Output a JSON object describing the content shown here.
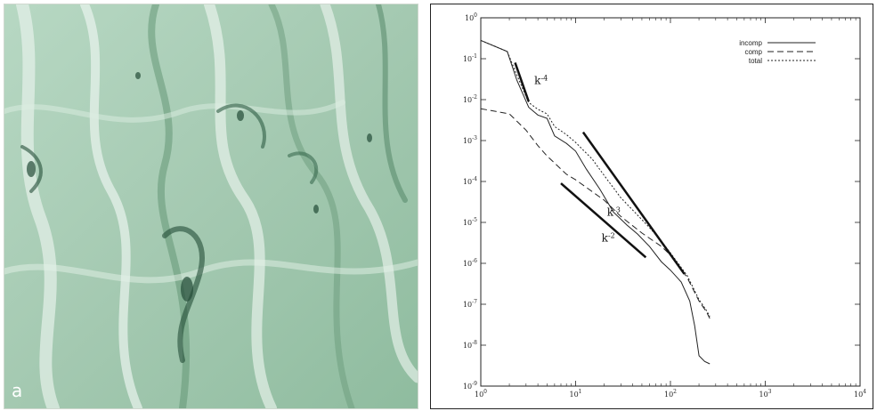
{
  "panel_a": {
    "label": "a",
    "description_colors": [
      "#a9cdb6",
      "#e6f1ea",
      "#5e9170",
      "#234c37"
    ]
  },
  "chart_data": {
    "type": "line",
    "xscale": "log",
    "yscale": "log",
    "xlim": [
      1,
      10000
    ],
    "ylim": [
      1e-09,
      1
    ],
    "xticks": [
      {
        "value": 1,
        "base": "10",
        "exp": "0"
      },
      {
        "value": 10,
        "base": "10",
        "exp": "1"
      },
      {
        "value": 100,
        "base": "10",
        "exp": "2"
      },
      {
        "value": 1000,
        "base": "10",
        "exp": "3"
      },
      {
        "value": 10000,
        "base": "10",
        "exp": "4"
      }
    ],
    "yticks": [
      {
        "value": 1,
        "base": "10",
        "exp": "0"
      },
      {
        "value": 0.1,
        "base": "10",
        "exp": "-1"
      },
      {
        "value": 0.01,
        "base": "10",
        "exp": "-2"
      },
      {
        "value": 0.001,
        "base": "10",
        "exp": "-3"
      },
      {
        "value": 0.0001,
        "base": "10",
        "exp": "-4"
      },
      {
        "value": 1e-05,
        "base": "10",
        "exp": "-5"
      },
      {
        "value": 1e-06,
        "base": "10",
        "exp": "-6"
      },
      {
        "value": 1e-07,
        "base": "10",
        "exp": "-7"
      },
      {
        "value": 1e-08,
        "base": "10",
        "exp": "-8"
      },
      {
        "value": 1e-09,
        "base": "10",
        "exp": "-9"
      }
    ],
    "legend_position": "top-right",
    "series": [
      {
        "name": "incomp",
        "style": "solid",
        "points": [
          [
            1,
            0.28
          ],
          [
            1.9,
            0.15
          ],
          [
            2.4,
            0.03
          ],
          [
            3.2,
            0.0065
          ],
          [
            4,
            0.0042
          ],
          [
            5,
            0.0035
          ],
          [
            6,
            0.0013
          ],
          [
            8,
            0.00085
          ],
          [
            10,
            0.00055
          ],
          [
            13,
            0.0002
          ],
          [
            18,
            6.5e-05
          ],
          [
            25,
            1.8e-05
          ],
          [
            35,
            8.5e-06
          ],
          [
            45,
            5.2e-06
          ],
          [
            60,
            2.6e-06
          ],
          [
            80,
            1.1e-06
          ],
          [
            100,
            6.8e-07
          ],
          [
            130,
            3.5e-07
          ],
          [
            160,
            1.2e-07
          ],
          [
            180,
            3e-08
          ],
          [
            200,
            5.5e-09
          ],
          [
            230,
            4e-09
          ],
          [
            260,
            3.5e-09
          ]
        ]
      },
      {
        "name": "comp",
        "style": "dashed",
        "points": [
          [
            1,
            0.006
          ],
          [
            2,
            0.0045
          ],
          [
            3,
            0.0018
          ],
          [
            4,
            0.00075
          ],
          [
            5,
            0.00042
          ],
          [
            8,
            0.00015
          ],
          [
            10,
            0.00011
          ],
          [
            20,
            3.5e-05
          ],
          [
            30,
            1.4e-05
          ],
          [
            50,
            5.5e-06
          ],
          [
            80,
            2.6e-06
          ],
          [
            100,
            1.6e-06
          ],
          [
            150,
            4.5e-07
          ],
          [
            200,
            1.2e-07
          ],
          [
            240,
            6.5e-08
          ],
          [
            260,
            4.5e-08
          ]
        ]
      },
      {
        "name": "total",
        "style": "dotted",
        "points": [
          [
            1,
            0.28
          ],
          [
            1.9,
            0.15
          ],
          [
            2.4,
            0.04
          ],
          [
            3.2,
            0.0085
          ],
          [
            4,
            0.0058
          ],
          [
            5,
            0.0045
          ],
          [
            6,
            0.0022
          ],
          [
            8,
            0.0014
          ],
          [
            10,
            0.0009
          ],
          [
            15,
            0.00035
          ],
          [
            20,
            0.00014
          ],
          [
            30,
            4e-05
          ],
          [
            45,
            1.5e-05
          ],
          [
            60,
            7.5e-06
          ],
          [
            80,
            3.5e-06
          ],
          [
            100,
            1.8e-06
          ],
          [
            150,
            5e-07
          ],
          [
            200,
            1.3e-07
          ],
          [
            240,
            7e-08
          ],
          [
            260,
            5e-08
          ]
        ]
      }
    ],
    "reference_lines": [
      {
        "label_base": "k",
        "label_exp": "-4",
        "from": [
          2.3,
          0.08
        ],
        "to": [
          3.2,
          0.009
        ]
      },
      {
        "label_base": "k",
        "label_exp": "-3",
        "from": [
          12,
          0.0016
        ],
        "to": [
          140,
          5.5e-07
        ]
      },
      {
        "label_base": "k",
        "label_exp": "-2",
        "from": [
          7,
          9e-05
        ],
        "to": [
          55,
          1.4e-06
        ]
      }
    ]
  }
}
